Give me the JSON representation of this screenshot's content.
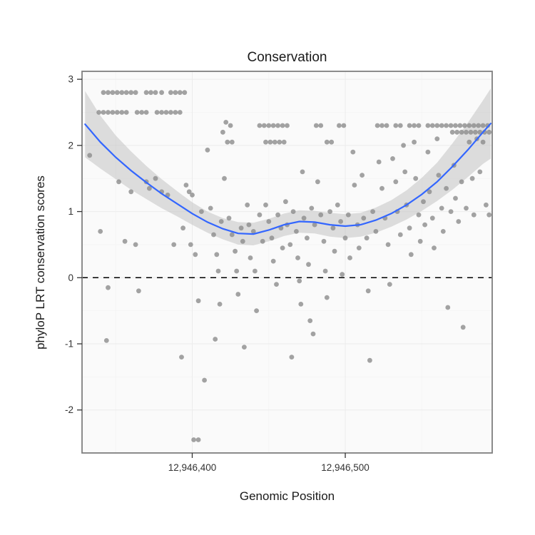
{
  "chart_data": {
    "type": "scatter",
    "title": "Conservation",
    "xlabel": "Genomic Position",
    "ylabel": "phyloP LRT conservation scores",
    "xlim": [
      12946328,
      12946596
    ],
    "ylim": [
      -2.65,
      3.12
    ],
    "x_ticks": [
      {
        "value": 12946400,
        "label": "12,946,400"
      },
      {
        "value": 12946500,
        "label": "12,946,500"
      }
    ],
    "y_ticks": [
      {
        "value": 3,
        "label": "3"
      },
      {
        "value": 2,
        "label": "2"
      },
      {
        "value": 1,
        "label": "1"
      },
      {
        "value": 0,
        "label": "0"
      },
      {
        "value": -1,
        "label": "-1"
      },
      {
        "value": -2,
        "label": "-2"
      }
    ],
    "hline": 0,
    "legend": "none",
    "grid": "on",
    "style": {
      "point_color": "#8c8c8c",
      "point_opacity": 0.8,
      "line_color": "#3366ff",
      "ribbon_color": "#bdbdbd",
      "ribbon_opacity": 0.5,
      "hline_color": "#000000",
      "panel_bg": "#fafafa",
      "panel_border": "#7f7f7f",
      "grid_major": "#ececec",
      "grid_minor": "#f5f5f5"
    },
    "points": [
      [
        12946342,
        2.8
      ],
      [
        12946345,
        2.8
      ],
      [
        12946348,
        2.8
      ],
      [
        12946351,
        2.8
      ],
      [
        12946354,
        2.8
      ],
      [
        12946357,
        2.8
      ],
      [
        12946360,
        2.8
      ],
      [
        12946363,
        2.8
      ],
      [
        12946370,
        2.8
      ],
      [
        12946373,
        2.8
      ],
      [
        12946376,
        2.8
      ],
      [
        12946380,
        2.8
      ],
      [
        12946386,
        2.8
      ],
      [
        12946389,
        2.8
      ],
      [
        12946392,
        2.8
      ],
      [
        12946395,
        2.8
      ],
      [
        12946339,
        2.5
      ],
      [
        12946342,
        2.5
      ],
      [
        12946345,
        2.5
      ],
      [
        12946348,
        2.5
      ],
      [
        12946351,
        2.5
      ],
      [
        12946354,
        2.5
      ],
      [
        12946357,
        2.5
      ],
      [
        12946364,
        2.5
      ],
      [
        12946367,
        2.5
      ],
      [
        12946370,
        2.5
      ],
      [
        12946377,
        2.5
      ],
      [
        12946380,
        2.5
      ],
      [
        12946383,
        2.5
      ],
      [
        12946386,
        2.5
      ],
      [
        12946389,
        2.5
      ],
      [
        12946392,
        2.5
      ],
      [
        12946333,
        1.85
      ],
      [
        12946340,
        0.7
      ],
      [
        12946344,
        -0.95
      ],
      [
        12946345,
        -0.15
      ],
      [
        12946352,
        1.45
      ],
      [
        12946356,
        0.55
      ],
      [
        12946360,
        1.3
      ],
      [
        12946363,
        0.5
      ],
      [
        12946365,
        -0.2
      ],
      [
        12946370,
        1.45
      ],
      [
        12946372,
        1.35
      ],
      [
        12946376,
        1.5
      ],
      [
        12946380,
        1.3
      ],
      [
        12946384,
        1.25
      ],
      [
        12946388,
        0.5
      ],
      [
        12946393,
        -1.2
      ],
      [
        12946394,
        0.75
      ],
      [
        12946396,
        1.4
      ],
      [
        12946398,
        1.3
      ],
      [
        12946399,
        0.5
      ],
      [
        12946400,
        1.25
      ],
      [
        12946402,
        0.35
      ],
      [
        12946404,
        -0.35
      ],
      [
        12946406,
        1.0
      ],
      [
        12946408,
        -1.55
      ],
      [
        12946410,
        1.93
      ],
      [
        12946412,
        1.05
      ],
      [
        12946414,
        0.65
      ],
      [
        12946415,
        -0.93
      ],
      [
        12946416,
        0.35
      ],
      [
        12946417,
        0.1
      ],
      [
        12946418,
        -0.4
      ],
      [
        12946419,
        0.85
      ],
      [
        12946401,
        -2.45
      ],
      [
        12946404,
        -2.45
      ],
      [
        12946420,
        2.2
      ],
      [
        12946422,
        2.35
      ],
      [
        12946425,
        2.3
      ],
      [
        12946423,
        2.05
      ],
      [
        12946426,
        2.05
      ],
      [
        12946421,
        1.5
      ],
      [
        12946424,
        0.9
      ],
      [
        12946426,
        0.65
      ],
      [
        12946428,
        0.4
      ],
      [
        12946429,
        0.1
      ],
      [
        12946430,
        -0.25
      ],
      [
        12946432,
        0.75
      ],
      [
        12946433,
        0.55
      ],
      [
        12946434,
        -1.05
      ],
      [
        12946436,
        1.1
      ],
      [
        12946437,
        0.8
      ],
      [
        12946438,
        0.3
      ],
      [
        12946440,
        0.7
      ],
      [
        12946441,
        0.1
      ],
      [
        12946442,
        -0.5
      ],
      [
        12946444,
        0.95
      ],
      [
        12946446,
        0.55
      ],
      [
        12946444,
        2.3
      ],
      [
        12946447,
        2.3
      ],
      [
        12946450,
        2.3
      ],
      [
        12946453,
        2.3
      ],
      [
        12946456,
        2.3
      ],
      [
        12946459,
        2.3
      ],
      [
        12946462,
        2.3
      ],
      [
        12946448,
        2.05
      ],
      [
        12946451,
        2.05
      ],
      [
        12946454,
        2.05
      ],
      [
        12946457,
        2.05
      ],
      [
        12946460,
        2.05
      ],
      [
        12946448,
        1.1
      ],
      [
        12946450,
        0.85
      ],
      [
        12946452,
        0.6
      ],
      [
        12946453,
        0.25
      ],
      [
        12946455,
        -0.1
      ],
      [
        12946456,
        0.95
      ],
      [
        12946458,
        0.75
      ],
      [
        12946459,
        0.45
      ],
      [
        12946461,
        1.15
      ],
      [
        12946462,
        0.8
      ],
      [
        12946464,
        0.5
      ],
      [
        12946465,
        -1.2
      ],
      [
        12946466,
        1.0
      ],
      [
        12946468,
        0.7
      ],
      [
        12946469,
        0.3
      ],
      [
        12946470,
        -0.05
      ],
      [
        12946471,
        -0.4
      ],
      [
        12946472,
        1.6
      ],
      [
        12946473,
        0.9
      ],
      [
        12946475,
        0.6
      ],
      [
        12946476,
        0.2
      ],
      [
        12946477,
        -0.65
      ],
      [
        12946478,
        1.05
      ],
      [
        12946479,
        -0.85
      ],
      [
        12946480,
        0.8
      ],
      [
        12946481,
        2.3
      ],
      [
        12946484,
        2.3
      ],
      [
        12946488,
        2.05
      ],
      [
        12946491,
        2.05
      ],
      [
        12946496,
        2.3
      ],
      [
        12946499,
        2.3
      ],
      [
        12946482,
        1.45
      ],
      [
        12946484,
        0.95
      ],
      [
        12946486,
        0.55
      ],
      [
        12946487,
        0.1
      ],
      [
        12946488,
        -0.3
      ],
      [
        12946490,
        1.0
      ],
      [
        12946492,
        0.75
      ],
      [
        12946493,
        0.4
      ],
      [
        12946495,
        1.1
      ],
      [
        12946497,
        0.85
      ],
      [
        12946498,
        0.05
      ],
      [
        12946500,
        0.6
      ],
      [
        12946502,
        0.95
      ],
      [
        12946503,
        0.3
      ],
      [
        12946505,
        1.9
      ],
      [
        12946506,
        1.4
      ],
      [
        12946508,
        0.8
      ],
      [
        12946509,
        0.45
      ],
      [
        12946511,
        1.55
      ],
      [
        12946512,
        0.9
      ],
      [
        12946514,
        0.6
      ],
      [
        12946515,
        -0.2
      ],
      [
        12946516,
        -1.25
      ],
      [
        12946518,
        1.0
      ],
      [
        12946520,
        0.7
      ],
      [
        12946521,
        2.3
      ],
      [
        12946524,
        2.3
      ],
      [
        12946527,
        2.3
      ],
      [
        12946533,
        2.3
      ],
      [
        12946536,
        2.3
      ],
      [
        12946542,
        2.3
      ],
      [
        12946545,
        2.3
      ],
      [
        12946548,
        2.3
      ],
      [
        12946554,
        2.3
      ],
      [
        12946557,
        2.3
      ],
      [
        12946560,
        2.3
      ],
      [
        12946563,
        2.3
      ],
      [
        12946566,
        2.3
      ],
      [
        12946569,
        2.3
      ],
      [
        12946572,
        2.3
      ],
      [
        12946575,
        2.3
      ],
      [
        12946578,
        2.3
      ],
      [
        12946581,
        2.3
      ],
      [
        12946584,
        2.3
      ],
      [
        12946587,
        2.3
      ],
      [
        12946590,
        2.3
      ],
      [
        12946593,
        2.3
      ],
      [
        12946570,
        2.2
      ],
      [
        12946573,
        2.2
      ],
      [
        12946576,
        2.2
      ],
      [
        12946579,
        2.2
      ],
      [
        12946582,
        2.2
      ],
      [
        12946585,
        2.2
      ],
      [
        12946588,
        2.2
      ],
      [
        12946591,
        2.2
      ],
      [
        12946594,
        2.2
      ],
      [
        12946522,
        1.75
      ],
      [
        12946524,
        1.35
      ],
      [
        12946526,
        0.9
      ],
      [
        12946528,
        0.5
      ],
      [
        12946529,
        -0.1
      ],
      [
        12946531,
        1.8
      ],
      [
        12946533,
        1.45
      ],
      [
        12946534,
        1.0
      ],
      [
        12946536,
        0.65
      ],
      [
        12946538,
        2.0
      ],
      [
        12946539,
        1.6
      ],
      [
        12946540,
        1.1
      ],
      [
        12946542,
        0.75
      ],
      [
        12946543,
        0.35
      ],
      [
        12946545,
        2.05
      ],
      [
        12946546,
        1.5
      ],
      [
        12946548,
        0.95
      ],
      [
        12946549,
        0.55
      ],
      [
        12946551,
        1.15
      ],
      [
        12946552,
        0.8
      ],
      [
        12946554,
        1.9
      ],
      [
        12946555,
        1.3
      ],
      [
        12946557,
        0.9
      ],
      [
        12946558,
        0.45
      ],
      [
        12946560,
        2.1
      ],
      [
        12946561,
        1.55
      ],
      [
        12946563,
        1.05
      ],
      [
        12946564,
        0.7
      ],
      [
        12946566,
        1.35
      ],
      [
        12946567,
        -0.45
      ],
      [
        12946569,
        1.0
      ],
      [
        12946571,
        1.7
      ],
      [
        12946572,
        1.2
      ],
      [
        12946574,
        0.85
      ],
      [
        12946576,
        1.45
      ],
      [
        12946577,
        -0.75
      ],
      [
        12946579,
        1.05
      ],
      [
        12946581,
        2.05
      ],
      [
        12946583,
        1.5
      ],
      [
        12946584,
        0.95
      ],
      [
        12946586,
        2.1
      ],
      [
        12946588,
        1.6
      ],
      [
        12946590,
        2.05
      ],
      [
        12946592,
        1.1
      ],
      [
        12946594,
        0.95
      ]
    ],
    "smooth": {
      "x": [
        12946330,
        12946340,
        12946350,
        12946360,
        12946370,
        12946380,
        12946390,
        12946400,
        12946410,
        12946420,
        12946430,
        12946440,
        12946450,
        12946460,
        12946470,
        12946480,
        12946490,
        12946500,
        12946510,
        12946520,
        12946530,
        12946540,
        12946550,
        12946560,
        12946570,
        12946580,
        12946590,
        12946595
      ],
      "y": [
        2.32,
        2.05,
        1.82,
        1.62,
        1.44,
        1.27,
        1.12,
        0.97,
        0.84,
        0.74,
        0.67,
        0.66,
        0.72,
        0.8,
        0.85,
        0.84,
        0.8,
        0.78,
        0.8,
        0.87,
        0.97,
        1.1,
        1.26,
        1.45,
        1.68,
        1.93,
        2.2,
        2.33
      ],
      "ymin": [
        1.82,
        1.65,
        1.49,
        1.33,
        1.19,
        1.05,
        0.93,
        0.8,
        0.68,
        0.58,
        0.5,
        0.49,
        0.55,
        0.63,
        0.68,
        0.67,
        0.62,
        0.6,
        0.62,
        0.68,
        0.77,
        0.88,
        1.01,
        1.16,
        1.33,
        1.52,
        1.72,
        1.8
      ],
      "ymax": [
        2.82,
        2.45,
        2.15,
        1.91,
        1.69,
        1.49,
        1.31,
        1.14,
        1.0,
        0.9,
        0.84,
        0.83,
        0.89,
        0.97,
        1.02,
        1.01,
        0.98,
        0.96,
        0.98,
        1.06,
        1.17,
        1.32,
        1.51,
        1.74,
        2.03,
        2.34,
        2.68,
        2.86
      ]
    }
  }
}
